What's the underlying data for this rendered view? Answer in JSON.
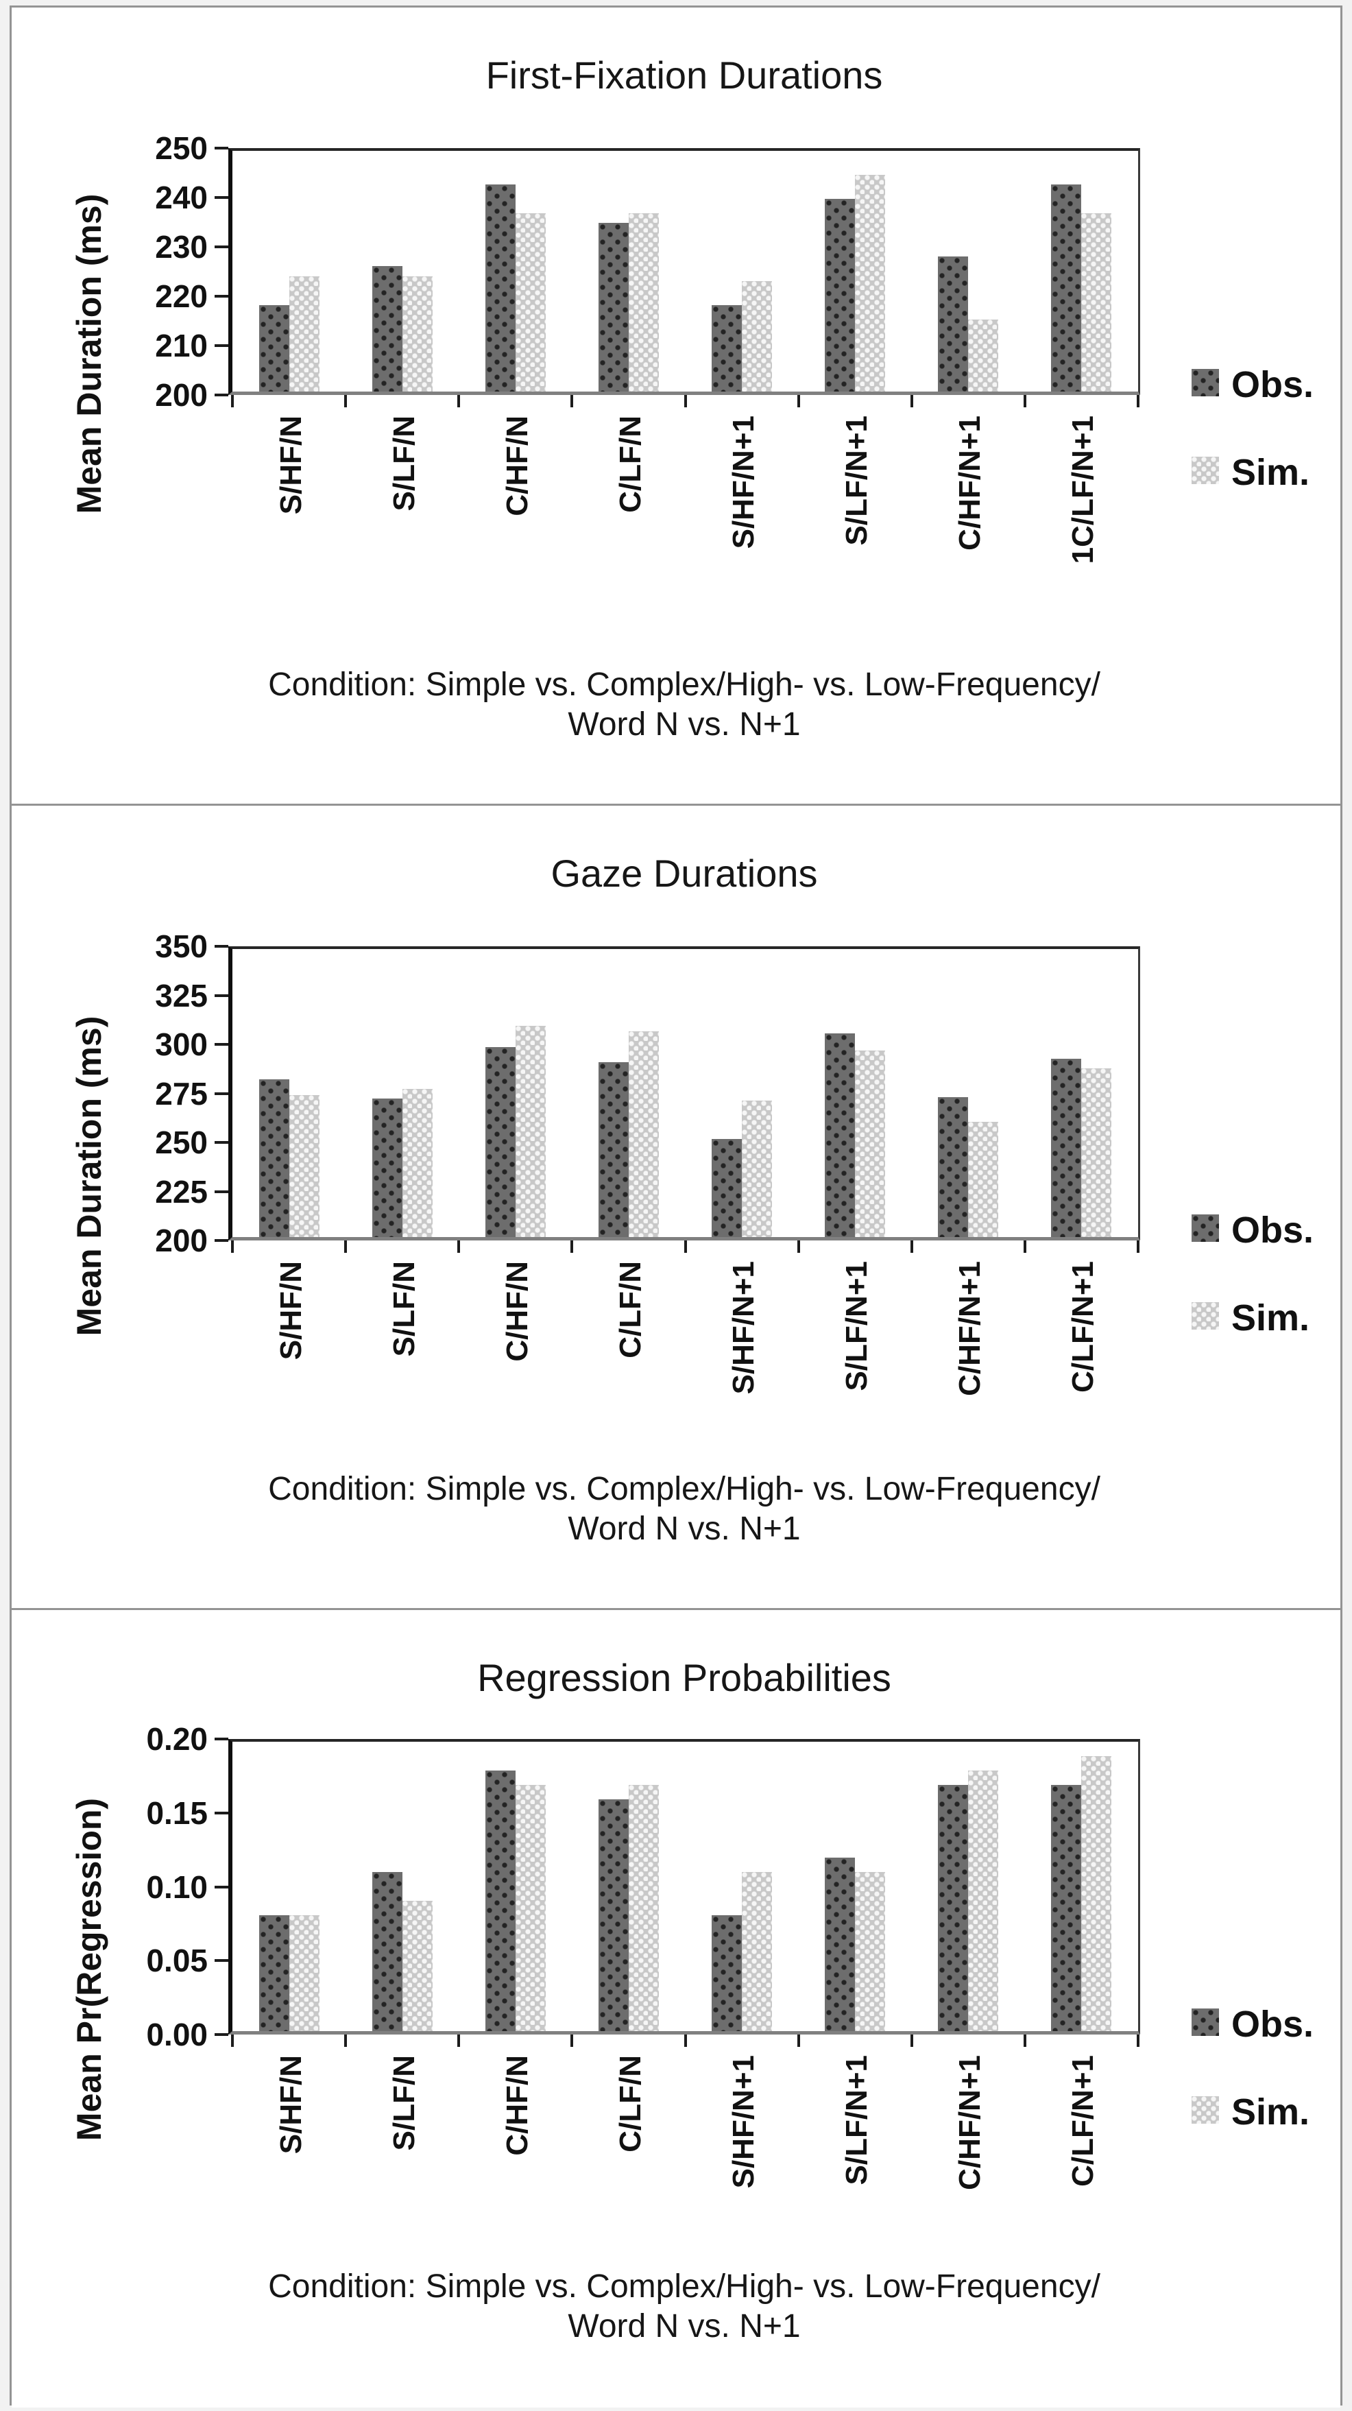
{
  "figure": {
    "background": "#ffffff",
    "panel_border_color": "#949494"
  },
  "colors": {
    "obs_base": "#6d6d6d",
    "obs_dot": "#232323",
    "sim_base": "#c8c8c8",
    "sim_dot": "#f6f6f6",
    "axis_line": "#1c1c1c",
    "baseline": "#808080",
    "text": "#141414"
  },
  "legend": {
    "obs_label": "Obs.",
    "sim_label": "Sim."
  },
  "chart_data": [
    {
      "type": "bar",
      "title": "First-Fixation Durations",
      "ylabel": "Mean Duration (ms)",
      "ylim": [
        200,
        250
      ],
      "ytick_step": 10,
      "ytick_labels": [
        "250",
        "240",
        "230",
        "220",
        "210",
        "200"
      ],
      "grid": false,
      "legend_position": "right",
      "categories": [
        "S/HF/N",
        "S/LF/N",
        "C/HF/N",
        "C/LF/N",
        "S/HF/N+1",
        "S/LF/N+1",
        "C/HF/N+1",
        "1C/LF/N+1"
      ],
      "series": [
        {
          "name": "Obs.",
          "values": [
            218,
            226,
            243,
            235,
            218,
            240,
            228,
            243
          ]
        },
        {
          "name": "Sim.",
          "values": [
            224,
            224,
            237,
            237,
            223,
            245,
            215,
            237
          ]
        }
      ],
      "xlabel_line1": "Condition: Simple vs. Complex/High- vs. Low-Frequency/",
      "xlabel_line2": "Word N vs. N+1"
    },
    {
      "type": "bar",
      "title": "Gaze Durations",
      "ylabel": "Mean Duration (ms)",
      "ylim": [
        200,
        350
      ],
      "ytick_step": 25,
      "ytick_labels": [
        "350",
        "325",
        "300",
        "275",
        "250",
        "225",
        "200"
      ],
      "grid": false,
      "legend_position": "right",
      "categories": [
        "S/HF/N",
        "S/LF/N",
        "C/HF/N",
        "C/LF/N",
        "S/HF/N+1",
        "S/LF/N+1",
        "C/HF/N+1",
        "C/LF/N+1"
      ],
      "series": [
        {
          "name": "Obs.",
          "values": [
            282,
            272,
            299,
            291,
            251,
            306,
            273,
            293
          ]
        },
        {
          "name": "Sim.",
          "values": [
            274,
            277,
            310,
            307,
            271,
            297,
            260,
            288
          ]
        }
      ],
      "xlabel_line1": "Condition: Simple vs. Complex/High- vs. Low-Frequency/",
      "xlabel_line2": "Word N vs. N+1"
    },
    {
      "type": "bar",
      "title": "Regression Probabilities",
      "ylabel": "Mean Pr(Regression)",
      "ylim": [
        0,
        0.2
      ],
      "ytick_step": 0.05,
      "ytick_labels": [
        "0.20",
        "0.15",
        "0.10",
        "0.05",
        "0.00"
      ],
      "grid": false,
      "legend_position": "right",
      "categories": [
        "S/HF/N",
        "S/LF/N",
        "C/HF/N",
        "C/LF/N",
        "S/HF/N+1",
        "S/LF/N+1",
        "C/HF/N+1",
        "C/LF/N+1"
      ],
      "series": [
        {
          "name": "Obs.",
          "values": [
            0.08,
            0.11,
            0.18,
            0.16,
            0.08,
            0.12,
            0.17,
            0.17
          ]
        },
        {
          "name": "Sim.",
          "values": [
            0.08,
            0.09,
            0.17,
            0.17,
            0.11,
            0.11,
            0.18,
            0.19
          ]
        }
      ],
      "xlabel_line1": "Condition: Simple vs. Complex/High- vs. Low-Frequency/",
      "xlabel_line2": "Word N vs. N+1"
    }
  ]
}
